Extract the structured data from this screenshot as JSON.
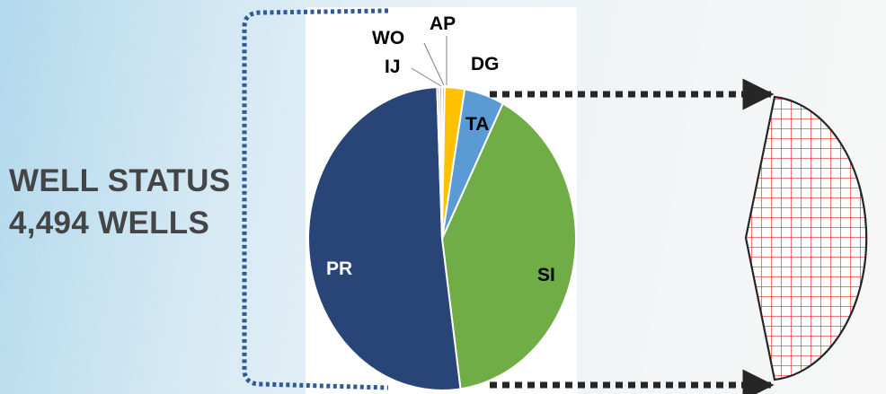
{
  "colors": {
    "PR": "#294578",
    "SI": "#70ad47",
    "TA": "#5b9bd5",
    "DG": "#ffc000",
    "AP": "#a5a5a5",
    "WO": "#a5a5a5",
    "IJ": "#a5a5a5",
    "title_text": "#444546",
    "bracket": "#2e5a9c",
    "arrow": "#262626",
    "hatch": "#e8292b"
  },
  "chart_data": {
    "type": "pie",
    "title": "WELL STATUS",
    "subtitle": "4,494 WELLS",
    "start_angle_deg": 0,
    "direction": "clockwise",
    "slices": [
      {
        "label": "AP",
        "value": 0.3
      },
      {
        "label": "DG",
        "value": 2.4
      },
      {
        "label": "TA",
        "value": 4.8
      },
      {
        "label": "SI",
        "value": 40.3
      },
      {
        "label": "PR",
        "value": 51.6
      },
      {
        "label": "IJ",
        "value": 0.3
      },
      {
        "label": "WO",
        "value": 0.3
      }
    ],
    "data_labels": [
      "AP",
      "DG",
      "TA",
      "SI",
      "PR",
      "IJ",
      "WO"
    ],
    "legend": "none"
  },
  "callout": {
    "shape": "hatched-half-disc",
    "pattern": "red-grid"
  }
}
